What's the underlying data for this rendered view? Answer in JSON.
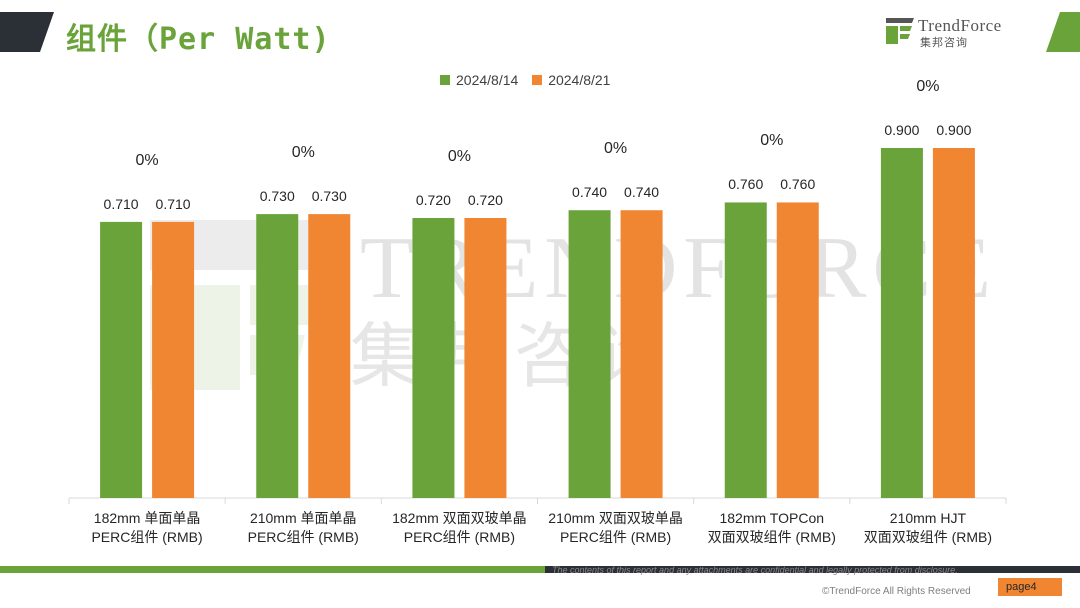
{
  "header": {
    "title": "组件（Per Watt)",
    "logo_text": "TrendForce",
    "logo_sub": "集邦咨询"
  },
  "watermark": {
    "text": "TRENDFORCE",
    "sub": "集邦咨询"
  },
  "chart_data": {
    "type": "bar",
    "categories": [
      [
        "182mm 单面单晶",
        "PERC组件 (RMB)"
      ],
      [
        "210mm 单面单晶",
        "PERC组件 (RMB)"
      ],
      [
        "182mm 双面双玻单晶",
        "PERC组件 (RMB)"
      ],
      [
        "210mm 双面双玻单晶",
        "PERC组件 (RMB)"
      ],
      [
        "182mm TOPCon",
        "双面双玻组件 (RMB)"
      ],
      [
        "210mm HJT",
        "双面双玻组件 (RMB)"
      ]
    ],
    "series": [
      {
        "name": "2024/8/14",
        "color": "#6aa33a",
        "values": [
          0.71,
          0.73,
          0.72,
          0.74,
          0.76,
          0.9
        ],
        "labels": [
          "0.710",
          "0.730",
          "0.720",
          "0.740",
          "0.760",
          "0.900"
        ]
      },
      {
        "name": "2024/8/21",
        "color": "#f08632",
        "values": [
          0.71,
          0.73,
          0.72,
          0.74,
          0.76,
          0.9
        ],
        "labels": [
          "0.710",
          "0.730",
          "0.720",
          "0.740",
          "0.760",
          "0.900"
        ]
      }
    ],
    "change_labels": [
      "0%",
      "0%",
      "0%",
      "0%",
      "0%",
      "0%"
    ],
    "ylim": [
      0,
      1.0
    ],
    "grid": false,
    "legend": "top-center"
  },
  "footer": {
    "disclaimer": "The contents of this report and any attachments are confidential and legally protected from disclosure.",
    "copyright": "©TrendForce All Rights Reserved",
    "page": "page4"
  }
}
